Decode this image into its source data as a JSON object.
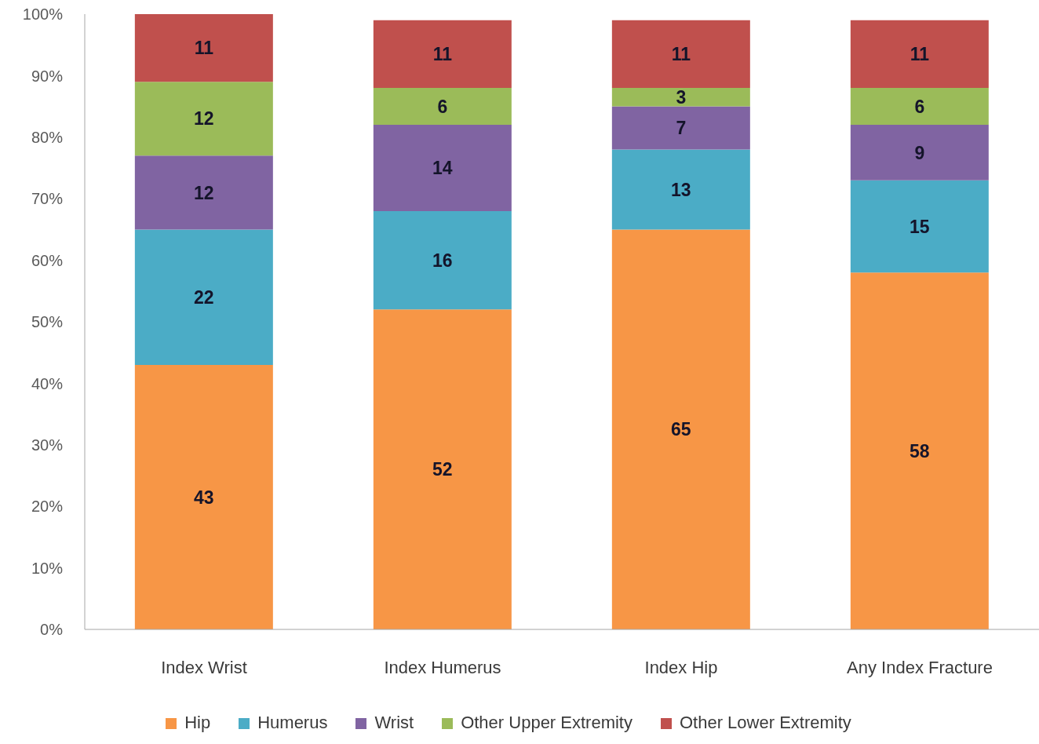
{
  "chart_data": {
    "type": "bar",
    "stacked": true,
    "categories": [
      "Index Wrist",
      "Index Humerus",
      "Index Hip",
      "Any Index Fracture"
    ],
    "series": [
      {
        "name": "Hip",
        "color": "#f79646",
        "values": [
          43,
          52,
          65,
          58
        ]
      },
      {
        "name": "Humerus",
        "color": "#4bacc6",
        "values": [
          22,
          16,
          13,
          15
        ]
      },
      {
        "name": "Wrist",
        "color": "#8064a2",
        "values": [
          12,
          14,
          7,
          9
        ]
      },
      {
        "name": "Other Upper Extremity",
        "color": "#9bbb59",
        "values": [
          12,
          6,
          3,
          6
        ]
      },
      {
        "name": "Other Lower Extremity",
        "color": "#c0504d",
        "values": [
          11,
          11,
          11,
          11
        ]
      }
    ],
    "ylim": [
      0,
      100
    ],
    "yticks": [
      {
        "value": 0,
        "label": "0%"
      },
      {
        "value": 10,
        "label": "10%"
      },
      {
        "value": 20,
        "label": "20%"
      },
      {
        "value": 30,
        "label": "30%"
      },
      {
        "value": 40,
        "label": "40%"
      },
      {
        "value": 50,
        "label": "50%"
      },
      {
        "value": 60,
        "label": "60%"
      },
      {
        "value": 70,
        "label": "70%"
      },
      {
        "value": 80,
        "label": "80%"
      },
      {
        "value": 90,
        "label": "90%"
      },
      {
        "value": 100,
        "label": "100%"
      }
    ],
    "data_labels": true,
    "legend": "bottom"
  }
}
